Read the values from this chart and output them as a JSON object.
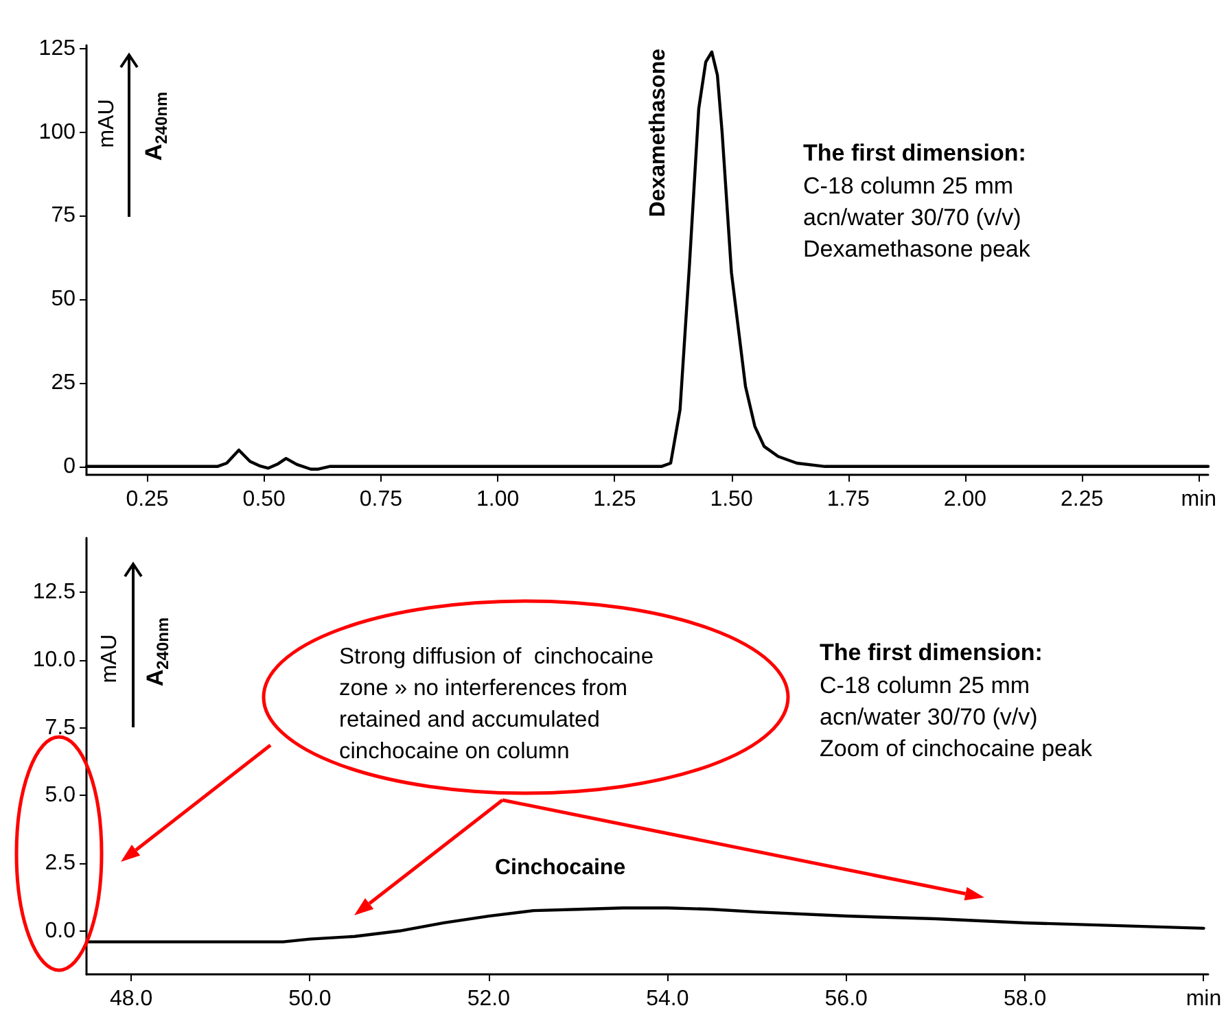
{
  "chart_data": [
    {
      "type": "line",
      "ylabel": "mAU",
      "color": "#000000",
      "x": [
        0.12,
        0.4,
        0.42,
        0.446,
        0.47,
        0.49,
        0.509,
        0.53,
        0.547,
        0.57,
        0.6,
        0.616,
        0.64,
        1.35,
        1.37,
        1.39,
        1.41,
        1.43,
        1.445,
        1.458,
        1.47,
        1.48,
        1.5,
        1.53,
        1.55,
        1.57,
        1.6,
        1.64,
        1.7,
        2.52
      ],
      "values": [
        0,
        0,
        1,
        4.9,
        1.5,
        0.2,
        -0.5,
        0.8,
        2.4,
        0.6,
        -0.8,
        -0.8,
        0,
        0,
        1,
        17,
        60,
        107,
        121,
        124,
        117,
        100,
        58,
        24,
        12,
        6,
        3,
        1,
        0,
        0
      ],
      "xlim": [
        0.12,
        2.52
      ],
      "xticks": [
        {
          "value": 0.25,
          "label": "0.25"
        },
        {
          "value": 0.5,
          "label": "0.50"
        },
        {
          "value": 0.75,
          "label": "0.75"
        },
        {
          "value": 1,
          "label": "1.00"
        },
        {
          "value": 1.25,
          "label": "1.25"
        },
        {
          "value": 1.5,
          "label": "1.50"
        },
        {
          "value": 1.75,
          "label": "1.75"
        },
        {
          "value": 2,
          "label": "2.00"
        },
        {
          "value": 2.25,
          "label": "2.25"
        },
        {
          "value": 2.5,
          "label": "min"
        }
      ],
      "ylim": [
        -2.5,
        126
      ],
      "yticks": [
        0,
        25,
        50,
        75,
        100,
        125
      ],
      "grid": false,
      "marker": "none",
      "line_style": "solid",
      "annotations": [
        {
          "text": "Dexamethasone",
          "x": 1.458,
          "y": 124
        },
        "A$_{240nm}$",
        "The first dimension:",
        "C-18 column 25 mm\nacn/water 30/70 (v/v)\nDexamethasone peak"
      ]
    },
    {
      "type": "line",
      "ylabel": "mAU",
      "color": "#000000",
      "x": [
        47.5,
        49.7,
        50.0,
        50.5,
        51.0,
        51.5,
        52.0,
        52.5,
        53.0,
        53.5,
        54.0,
        54.5,
        55.0,
        56.0,
        57.0,
        58.0,
        59.0,
        60.0
      ],
      "values": [
        -0.4,
        -0.4,
        -0.3,
        -0.2,
        0,
        0.3,
        0.55,
        0.75,
        0.8,
        0.85,
        0.85,
        0.8,
        0.7,
        0.55,
        0.45,
        0.3,
        0.2,
        0.1
      ],
      "xlim": [
        47.5,
        60.05
      ],
      "xticks": [
        {
          "value": 48,
          "label": "48.0"
        },
        {
          "value": 50,
          "label": "50.0"
        },
        {
          "value": 52,
          "label": "52.0"
        },
        {
          "value": 54,
          "label": "54.0"
        },
        {
          "value": 56,
          "label": "56.0"
        },
        {
          "value": 58,
          "label": "58.0"
        },
        {
          "value": 60,
          "label": "min"
        }
      ],
      "ylim": [
        -1.6,
        14.5
      ],
      "yticks": [
        {
          "value": 0,
          "label": "0.0"
        },
        2.5,
        {
          "value": 5,
          "label": "5.0"
        },
        7.5,
        {
          "value": 10,
          "label": "10.0"
        },
        12.5
      ],
      "grid": false,
      "marker": "none",
      "line_style": "solid",
      "annotations": [
        {
          "text": "Cinchocaine",
          "x": 52.8,
          "y": 0.8
        },
        "A$_{240nm}$",
        "The first dimension:",
        "C-18 column 25 mm\nacn/water 30/70 (v/v)\nZoom of cinchocaine peak",
        "Strong diffusion of  cinchocaine\nzone » no interferences from\nretained and accumulated\ncinchocaine on column"
      ]
    }
  ]
}
